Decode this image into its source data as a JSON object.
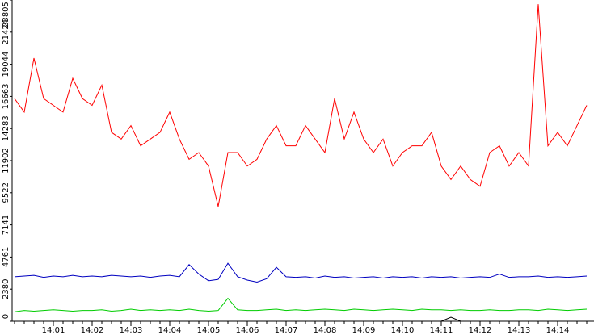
{
  "chart_data": {
    "type": "line",
    "categories": [
      null,
      null,
      null,
      null,
      "14:01",
      null,
      null,
      null,
      "14:02",
      null,
      null,
      null,
      "14:03",
      null,
      null,
      null,
      "14:04",
      null,
      null,
      null,
      "14:05",
      null,
      null,
      null,
      "14:06",
      null,
      null,
      null,
      "14:07",
      null,
      null,
      null,
      "14:08",
      null,
      null,
      null,
      "14:09",
      null,
      null,
      null,
      "14:10",
      null,
      null,
      null,
      "14:11",
      null,
      null,
      null,
      "14:12",
      null,
      null,
      null,
      "14:13",
      null,
      null,
      null,
      "14:14",
      null,
      null,
      null
    ],
    "series": [
      {
        "color": "#ff0000",
        "values": [
          16500,
          15500,
          19500,
          16500,
          16000,
          15500,
          18000,
          16500,
          16000,
          17500,
          14000,
          13500,
          14500,
          13000,
          13500,
          14000,
          15500,
          13500,
          12000,
          12500,
          11500,
          8500,
          12500,
          12500,
          11500,
          12000,
          13500,
          14500,
          13000,
          13000,
          14500,
          13500,
          12500,
          16500,
          13500,
          15500,
          13500,
          12500,
          13500,
          11500,
          12500,
          13000,
          13000,
          14000,
          11500,
          10500,
          11500,
          10500,
          10000,
          12500,
          13000,
          11500,
          12500,
          11500,
          23500,
          13000,
          14000,
          13000,
          14500,
          16000
        ]
      },
      {
        "color": "#0000c0",
        "values": [
          3300,
          3350,
          3400,
          3250,
          3350,
          3300,
          3400,
          3300,
          3350,
          3300,
          3400,
          3350,
          3300,
          3350,
          3250,
          3350,
          3400,
          3300,
          4200,
          3500,
          3000,
          3100,
          4300,
          3300,
          3050,
          2900,
          3150,
          4000,
          3300,
          3250,
          3300,
          3200,
          3350,
          3250,
          3300,
          3200,
          3250,
          3300,
          3200,
          3300,
          3250,
          3300,
          3200,
          3300,
          3250,
          3300,
          3200,
          3250,
          3300,
          3250,
          3500,
          3250,
          3300,
          3300,
          3350,
          3250,
          3300,
          3250,
          3300,
          3350
        ]
      },
      {
        "color": "#00cc00",
        "values": [
          700,
          800,
          750,
          800,
          850,
          800,
          750,
          800,
          800,
          850,
          750,
          800,
          900,
          800,
          850,
          800,
          850,
          800,
          900,
          800,
          750,
          800,
          1700,
          850,
          800,
          800,
          850,
          900,
          800,
          850,
          800,
          850,
          900,
          850,
          800,
          900,
          850,
          800,
          850,
          900,
          850,
          800,
          900,
          850,
          850,
          800,
          850,
          800,
          800,
          850,
          800,
          800,
          850,
          850,
          800,
          900,
          850,
          800,
          850,
          900
        ]
      },
      {
        "color": "#000000",
        "values": [
          0,
          0,
          0,
          0,
          0,
          0,
          0,
          0,
          0,
          0,
          0,
          0,
          0,
          0,
          0,
          0,
          0,
          0,
          0,
          0,
          0,
          0,
          0,
          0,
          0,
          0,
          0,
          0,
          0,
          0,
          0,
          0,
          0,
          0,
          0,
          0,
          0,
          0,
          0,
          0,
          0,
          0,
          0,
          0,
          0,
          300,
          0,
          0,
          0,
          0,
          0,
          0,
          0,
          0,
          0,
          0,
          0,
          0,
          0,
          0
        ]
      }
    ],
    "ylim": [
      0,
      23805
    ],
    "yticks": [
      0,
      2380,
      4761,
      7141,
      9522,
      11902,
      14283,
      16663,
      19044,
      21424,
      23805
    ]
  }
}
